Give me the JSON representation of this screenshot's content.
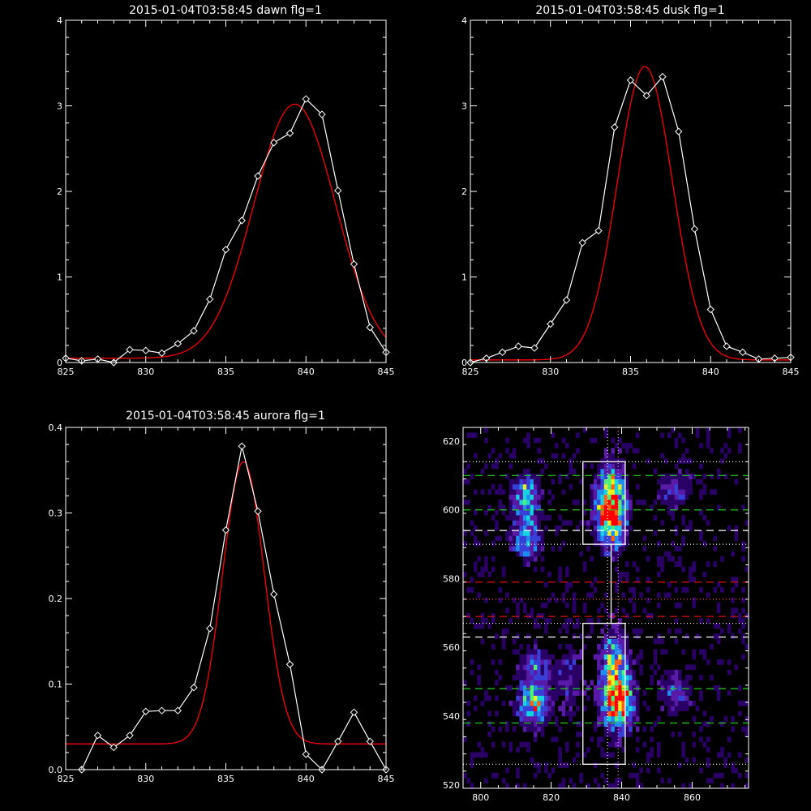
{
  "chart_data": [
    {
      "type": "line",
      "title": "2015-01-04T03:58:45 dawn flg=1",
      "xlim": [
        825,
        845
      ],
      "ylim": [
        0,
        4
      ],
      "xticks": [
        825,
        830,
        835,
        840,
        845
      ],
      "yticks": [
        0,
        1,
        2,
        3,
        4
      ],
      "ytick_labels": [
        "0",
        "1",
        "2",
        "3",
        "4"
      ],
      "series": [
        {
          "kind": "observed",
          "color": "#ffffff",
          "marker": "diamond",
          "x": [
            825,
            826,
            827,
            828,
            829,
            830,
            831,
            832,
            833,
            834,
            835,
            836,
            837,
            838,
            839,
            840,
            841,
            842,
            843,
            844,
            845
          ],
          "y": [
            0.05,
            0.02,
            0.04,
            0.0,
            0.15,
            0.14,
            0.11,
            0.22,
            0.37,
            0.74,
            1.32,
            1.66,
            2.18,
            2.57,
            2.68,
            3.08,
            2.9,
            2.01,
            1.15,
            0.41,
            0.12
          ]
        },
        {
          "kind": "fit",
          "color": "#ff0000",
          "gaussian": {
            "baseline": 0.05,
            "amplitude": 2.97,
            "center": 839.3,
            "sigma": 2.55
          }
        }
      ]
    },
    {
      "type": "line",
      "title": "2015-01-04T03:58:45 dusk flg=1",
      "xlim": [
        825,
        845
      ],
      "ylim": [
        0,
        4
      ],
      "xticks": [
        825,
        830,
        835,
        840,
        845
      ],
      "yticks": [
        0,
        1,
        2,
        3,
        4
      ],
      "ytick_labels": [
        "0",
        "1",
        "2",
        "3",
        "4"
      ],
      "series": [
        {
          "kind": "observed",
          "color": "#ffffff",
          "marker": "diamond",
          "x": [
            825,
            826,
            827,
            828,
            829,
            830,
            831,
            832,
            833,
            834,
            835,
            836,
            837,
            838,
            839,
            840,
            841,
            842,
            843,
            844,
            845
          ],
          "y": [
            0.0,
            0.05,
            0.12,
            0.19,
            0.17,
            0.45,
            0.73,
            1.4,
            1.54,
            2.75,
            3.3,
            3.12,
            3.34,
            2.7,
            1.56,
            0.62,
            0.19,
            0.12,
            0.04,
            0.05,
            0.06
          ]
        },
        {
          "kind": "fit",
          "color": "#ff0000",
          "gaussian": {
            "baseline": 0.03,
            "amplitude": 3.43,
            "center": 835.9,
            "sigma": 1.72
          }
        }
      ]
    },
    {
      "type": "line",
      "title": "2015-01-04T03:58:45 aurora flg=1",
      "xlim": [
        825,
        845
      ],
      "ylim": [
        0,
        0.4
      ],
      "xticks": [
        825,
        830,
        835,
        840,
        845
      ],
      "yticks": [
        0,
        0.1,
        0.2,
        0.3,
        0.4
      ],
      "ytick_labels": [
        "0.0",
        "0.1",
        "0.2",
        "0.3",
        "0.4"
      ],
      "series": [
        {
          "kind": "observed",
          "color": "#ffffff",
          "marker": "diamond",
          "x": [
            826,
            827,
            828,
            829,
            830,
            831,
            832,
            833,
            834,
            835,
            836,
            837,
            838,
            839,
            840,
            841,
            842,
            843,
            844,
            845
          ],
          "y": [
            0.0,
            0.04,
            0.026,
            0.04,
            0.068,
            0.069,
            0.069,
            0.096,
            0.165,
            0.28,
            0.378,
            0.302,
            0.205,
            0.123,
            0.018,
            0.0,
            0.033,
            0.067,
            0.033,
            0.0
          ]
        },
        {
          "kind": "fit",
          "color": "#ff0000",
          "gaussian": {
            "baseline": 0.03,
            "amplitude": 0.33,
            "center": 836.1,
            "sigma": 1.3
          }
        }
      ]
    },
    {
      "type": "heatmap",
      "title": "",
      "xlim": [
        795,
        876
      ],
      "ylim": [
        519,
        624
      ],
      "xticks": [
        800,
        820,
        840,
        860
      ],
      "yticks": [
        520,
        540,
        560,
        580,
        600,
        620
      ],
      "colormap": [
        "#000000",
        "#2a0066",
        "#5a1aa8",
        "#3840d8",
        "#1f8ef0",
        "#14d4e0",
        "#4cf07a",
        "#e8f020",
        "#ff6010",
        "#ff0000"
      ],
      "hot_spots": [
        {
          "x": 837,
          "y": 603,
          "sx": 2.5,
          "sy": 6,
          "amp": 0.95
        },
        {
          "x": 837,
          "y": 596,
          "sx": 2.5,
          "sy": 5,
          "amp": 0.6
        },
        {
          "x": 839,
          "y": 544,
          "sx": 2.8,
          "sy": 5,
          "amp": 0.95
        },
        {
          "x": 838,
          "y": 555,
          "sx": 2.5,
          "sy": 6,
          "amp": 0.6
        },
        {
          "x": 813,
          "y": 604,
          "sx": 2.5,
          "sy": 4,
          "amp": 0.55
        },
        {
          "x": 813,
          "y": 592,
          "sx": 2.5,
          "sy": 4,
          "amp": 0.45
        },
        {
          "x": 815,
          "y": 544,
          "sx": 2.8,
          "sy": 4,
          "amp": 0.65
        },
        {
          "x": 815,
          "y": 555,
          "sx": 2.5,
          "sy": 3,
          "amp": 0.35
        },
        {
          "x": 855,
          "y": 606,
          "sx": 3,
          "sy": 3,
          "amp": 0.3
        },
        {
          "x": 855,
          "y": 547,
          "sx": 3,
          "sy": 4,
          "amp": 0.25
        },
        {
          "x": 825,
          "y": 552,
          "sx": 3,
          "sy": 6,
          "amp": 0.2
        }
      ],
      "boxes": [
        {
          "x0": 829,
          "x1": 841,
          "y0": 590,
          "y1": 614
        },
        {
          "x0": 829,
          "x1": 841,
          "y0": 526,
          "y1": 567
        }
      ],
      "vertical_dotted_lines": [
        {
          "x": 836,
          "color": "#ffffff"
        },
        {
          "x": 839,
          "color": "#ff88ff"
        }
      ],
      "horizontal_lines": [
        {
          "y": 614,
          "style": "dotted",
          "color": "#ffffff"
        },
        {
          "y": 610,
          "style": "dashed",
          "color": "#22cc22"
        },
        {
          "y": 600,
          "style": "dashed",
          "color": "#22cc22"
        },
        {
          "y": 594,
          "style": "dashed",
          "color": "#ffffff"
        },
        {
          "y": 590,
          "style": "dotted",
          "color": "#ffffff"
        },
        {
          "y": 579,
          "style": "dashed",
          "color": "#dd1111"
        },
        {
          "y": 574,
          "style": "dotted",
          "color": "#ff4444"
        },
        {
          "y": 569,
          "style": "dashed",
          "color": "#dd1111"
        },
        {
          "y": 567,
          "style": "dotted",
          "color": "#ffffff"
        },
        {
          "y": 563,
          "style": "dashed",
          "color": "#ffffff"
        },
        {
          "y": 548,
          "style": "dashed",
          "color": "#22cc22"
        },
        {
          "y": 538,
          "style": "dashed",
          "color": "#22cc22"
        },
        {
          "y": 526,
          "style": "dotted",
          "color": "#ffffff"
        }
      ]
    }
  ]
}
